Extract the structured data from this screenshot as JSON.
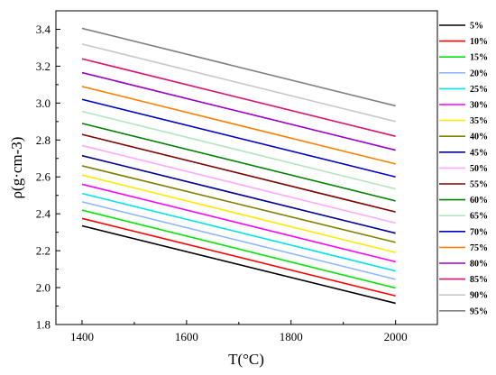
{
  "chart_data": {
    "type": "line",
    "xlabel": "T(°C)",
    "ylabel": "ρ(g·cm-3)",
    "xlim": [
      1350,
      2080
    ],
    "ylim": [
      1.8,
      3.5
    ],
    "x_ticks": [
      1400,
      1600,
      1800,
      2000
    ],
    "y_ticks": [
      1.8,
      2.0,
      2.2,
      2.4,
      2.6,
      2.8,
      3.0,
      3.2,
      3.4
    ],
    "x_tick_labels": [
      "1400",
      "1600",
      "1800",
      "2000"
    ],
    "y_tick_labels": [
      "1.8",
      "2.0",
      "2.2",
      "2.4",
      "2.6",
      "2.8",
      "3.0",
      "3.2",
      "3.4"
    ],
    "grid": false,
    "legend_position": "right",
    "x": [
      1400,
      2000
    ],
    "series": [
      {
        "name": "5%",
        "color": "#000000",
        "values": [
          2.335,
          1.915
        ]
      },
      {
        "name": "10%",
        "color": "#ff0000",
        "values": [
          2.375,
          1.955
        ]
      },
      {
        "name": "15%",
        "color": "#00e600",
        "values": [
          2.42,
          1.998
        ]
      },
      {
        "name": "20%",
        "color": "#8fb6ff",
        "values": [
          2.465,
          2.045
        ]
      },
      {
        "name": "25%",
        "color": "#00e5e5",
        "values": [
          2.51,
          2.09
        ]
      },
      {
        "name": "30%",
        "color": "#ff00ff",
        "values": [
          2.56,
          2.14
        ]
      },
      {
        "name": "35%",
        "color": "#ffea00",
        "values": [
          2.61,
          2.19
        ]
      },
      {
        "name": "40%",
        "color": "#808000",
        "values": [
          2.66,
          2.245
        ]
      },
      {
        "name": "45%",
        "color": "#000099",
        "values": [
          2.715,
          2.295
        ]
      },
      {
        "name": "50%",
        "color": "#ffaaff",
        "values": [
          2.77,
          2.35
        ]
      },
      {
        "name": "55%",
        "color": "#800000",
        "values": [
          2.83,
          2.41
        ]
      },
      {
        "name": "60%",
        "color": "#008000",
        "values": [
          2.89,
          2.47
        ]
      },
      {
        "name": "65%",
        "color": "#b3e6c0",
        "values": [
          2.955,
          2.535
        ]
      },
      {
        "name": "70%",
        "color": "#0000cc",
        "values": [
          3.02,
          2.6
        ]
      },
      {
        "name": "75%",
        "color": "#ff8000",
        "values": [
          3.09,
          2.67
        ]
      },
      {
        "name": "80%",
        "color": "#9900cc",
        "values": [
          3.165,
          2.745
        ]
      },
      {
        "name": "85%",
        "color": "#e0106e",
        "values": [
          3.24,
          2.82
        ]
      },
      {
        "name": "90%",
        "color": "#c8c8c8",
        "values": [
          3.32,
          2.9
        ]
      },
      {
        "name": "95%",
        "color": "#808080",
        "values": [
          3.405,
          2.985
        ]
      }
    ]
  }
}
